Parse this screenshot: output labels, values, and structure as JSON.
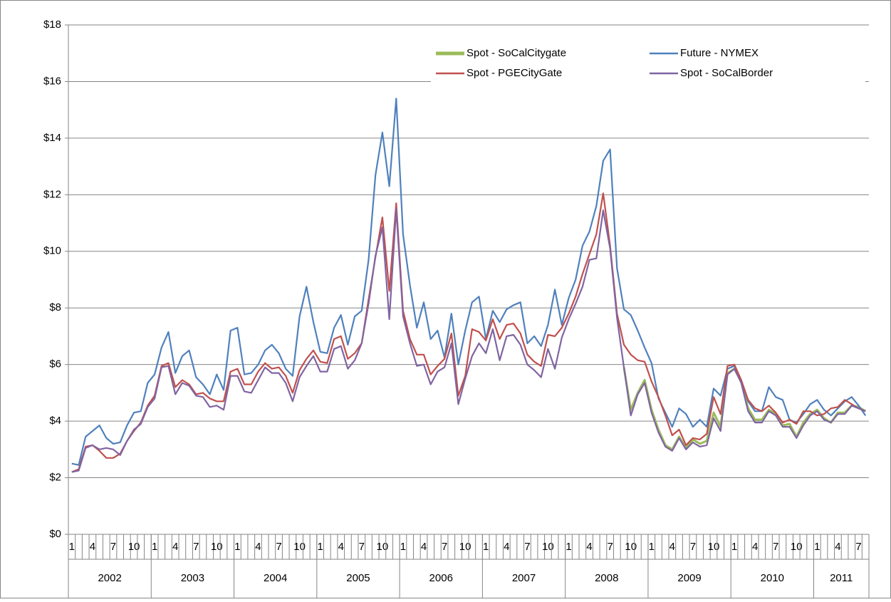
{
  "chart_data": {
    "type": "line",
    "categories": [
      "1",
      null,
      null,
      "4",
      null,
      null,
      "7",
      null,
      null,
      "10",
      null,
      null,
      "1",
      null,
      null,
      "4",
      null,
      null,
      "7",
      null,
      null,
      "10",
      null,
      null,
      "1",
      null,
      null,
      "4",
      null,
      null,
      "7",
      null,
      null,
      "10",
      null,
      null,
      "1",
      null,
      null,
      "4",
      null,
      null,
      "7",
      null,
      null,
      "10",
      null,
      null,
      "1",
      null,
      null,
      "4",
      null,
      null,
      "7",
      null,
      null,
      "10",
      null,
      null,
      "1",
      null,
      null,
      "4",
      null,
      null,
      "7",
      null,
      null,
      "10",
      null,
      null,
      "1",
      null,
      null,
      "4",
      null,
      null,
      "7",
      null,
      null,
      "10",
      null,
      null,
      "1",
      null,
      null,
      "4",
      null,
      null,
      "7",
      null,
      null,
      "10",
      null,
      null,
      "1",
      null,
      null,
      "4",
      null,
      null,
      "7",
      null,
      null,
      "10",
      null,
      null,
      "1",
      null,
      null,
      "4",
      null,
      null,
      "7",
      null
    ],
    "groups": [
      "2002",
      "2003",
      "2004",
      "2005",
      "2006",
      "2007",
      "2008",
      "2009",
      "2010",
      "2011"
    ],
    "ylim": [
      0,
      18
    ],
    "yticks": [
      {
        "value": 0,
        "label": "$0"
      },
      {
        "value": 2,
        "label": "$2"
      },
      {
        "value": 4,
        "label": "$4"
      },
      {
        "value": 6,
        "label": "$6"
      },
      {
        "value": 8,
        "label": "$8"
      },
      {
        "value": 10,
        "label": "$10"
      },
      {
        "value": 12,
        "label": "$12"
      },
      {
        "value": 14,
        "label": "$14"
      },
      {
        "value": 16,
        "label": "$16"
      },
      {
        "value": 18,
        "label": "$18"
      }
    ],
    "grid": true,
    "legend": "top-right",
    "series": [
      {
        "name": "Spot - SoCalCitygate",
        "color": "#9bbb59",
        "values": [
          null,
          null,
          null,
          null,
          null,
          null,
          null,
          null,
          null,
          null,
          null,
          null,
          null,
          null,
          null,
          null,
          null,
          null,
          null,
          null,
          null,
          null,
          null,
          null,
          null,
          null,
          null,
          null,
          null,
          null,
          null,
          null,
          null,
          null,
          null,
          null,
          null,
          null,
          null,
          null,
          null,
          null,
          null,
          null,
          null,
          null,
          null,
          null,
          null,
          null,
          null,
          null,
          null,
          null,
          null,
          null,
          null,
          null,
          null,
          null,
          null,
          null,
          null,
          null,
          null,
          null,
          null,
          null,
          null,
          null,
          null,
          null,
          null,
          null,
          null,
          null,
          null,
          null,
          null,
          null,
          5.9,
          4.4,
          5.0,
          5.45,
          4.4,
          3.7,
          3.15,
          3.0,
          3.45,
          3.05,
          3.35,
          3.2,
          3.3,
          4.3,
          3.8,
          5.7,
          5.85,
          5.4,
          4.45,
          4.05,
          4.05,
          4.4,
          4.25,
          3.85,
          3.9,
          3.45,
          3.95,
          4.25,
          4.4,
          4.1,
          3.95,
          4.3,
          4.3,
          4.55,
          4.5,
          4.35
        ]
      },
      {
        "name": "Future - NYMEX",
        "color": "#4f81bd",
        "values": [
          2.5,
          2.45,
          3.45,
          3.65,
          3.85,
          3.4,
          3.2,
          3.25,
          3.85,
          4.3,
          4.35,
          5.35,
          5.65,
          6.6,
          7.15,
          5.7,
          6.3,
          6.5,
          5.55,
          5.3,
          4.95,
          5.65,
          5.1,
          7.2,
          7.3,
          5.65,
          5.7,
          6.0,
          6.5,
          6.7,
          6.4,
          5.85,
          5.6,
          7.7,
          8.75,
          7.5,
          6.45,
          6.4,
          7.3,
          7.75,
          6.7,
          7.7,
          7.9,
          9.7,
          12.7,
          14.2,
          12.3,
          15.4,
          10.6,
          8.8,
          7.3,
          8.2,
          6.9,
          7.2,
          6.25,
          7.8,
          6.0,
          7.2,
          8.2,
          8.4,
          6.9,
          7.9,
          7.5,
          7.95,
          8.1,
          8.2,
          6.75,
          7.0,
          6.65,
          7.4,
          8.65,
          7.4,
          8.35,
          9.0,
          10.2,
          10.7,
          11.6,
          13.2,
          13.6,
          9.4,
          7.95,
          7.75,
          7.2,
          6.6,
          6.05,
          4.8,
          4.3,
          3.8,
          4.45,
          4.25,
          3.8,
          4.05,
          3.8,
          5.15,
          4.9,
          5.85,
          5.95,
          5.45,
          4.7,
          4.35,
          4.35,
          5.2,
          4.85,
          4.75,
          4.05,
          3.95,
          4.25,
          4.6,
          4.75,
          4.4,
          4.2,
          4.45,
          4.7,
          4.85,
          4.55,
          4.2
        ]
      },
      {
        "name": "Spot - PGECityGate",
        "color": "#c0504d",
        "values": [
          2.2,
          2.3,
          3.1,
          3.15,
          2.95,
          2.7,
          2.7,
          2.85,
          3.3,
          3.65,
          3.95,
          4.55,
          4.9,
          5.95,
          6.05,
          5.2,
          5.45,
          5.3,
          4.95,
          5.0,
          4.8,
          4.7,
          4.7,
          5.75,
          5.85,
          5.3,
          5.3,
          5.75,
          6.05,
          5.85,
          5.9,
          5.6,
          5.0,
          5.8,
          6.2,
          6.5,
          6.1,
          6.05,
          6.9,
          7.0,
          6.2,
          6.4,
          6.75,
          8.3,
          9.8,
          11.2,
          8.6,
          11.7,
          7.9,
          6.9,
          6.35,
          6.35,
          5.65,
          5.95,
          6.2,
          7.1,
          4.9,
          5.6,
          7.25,
          7.15,
          6.85,
          7.6,
          6.9,
          7.4,
          7.45,
          7.1,
          6.35,
          6.1,
          5.95,
          7.05,
          7.0,
          7.3,
          7.8,
          8.4,
          9.2,
          9.9,
          10.6,
          12.05,
          10.2,
          7.8,
          6.7,
          6.35,
          6.15,
          6.1,
          5.4,
          4.85,
          4.2,
          3.5,
          3.7,
          3.15,
          3.4,
          3.35,
          3.55,
          4.85,
          4.25,
          5.95,
          6.0,
          5.45,
          4.75,
          4.45,
          4.35,
          4.55,
          4.3,
          3.95,
          4.05,
          3.9,
          4.35,
          4.35,
          4.2,
          4.25,
          4.45,
          4.5,
          4.75,
          4.6,
          4.45,
          4.35
        ]
      },
      {
        "name": "Spot - SoCalBorder",
        "color": "#8064a2",
        "values": [
          2.2,
          2.25,
          3.05,
          3.15,
          3.0,
          3.05,
          3.0,
          2.8,
          3.3,
          3.7,
          3.9,
          4.5,
          4.8,
          5.9,
          5.95,
          4.95,
          5.35,
          5.25,
          4.9,
          4.85,
          4.5,
          4.55,
          4.4,
          5.6,
          5.6,
          5.05,
          5.0,
          5.45,
          5.9,
          5.7,
          5.7,
          5.35,
          4.7,
          5.55,
          5.95,
          6.3,
          5.75,
          5.75,
          6.55,
          6.65,
          5.85,
          6.15,
          6.75,
          8.15,
          9.85,
          10.85,
          7.6,
          11.5,
          7.7,
          6.75,
          5.95,
          6.0,
          5.3,
          5.75,
          5.9,
          6.75,
          4.6,
          5.5,
          6.3,
          6.75,
          6.4,
          7.25,
          6.15,
          7.0,
          7.05,
          6.7,
          6.0,
          5.8,
          5.55,
          6.55,
          5.85,
          6.95,
          7.6,
          8.15,
          8.75,
          9.7,
          9.75,
          11.45,
          10.1,
          7.65,
          5.9,
          4.2,
          4.95,
          5.35,
          4.3,
          3.6,
          3.1,
          2.95,
          3.4,
          3.0,
          3.25,
          3.1,
          3.15,
          4.1,
          3.65,
          5.65,
          5.85,
          5.35,
          4.35,
          3.95,
          3.95,
          4.35,
          4.2,
          3.8,
          3.8,
          3.4,
          3.85,
          4.2,
          4.35,
          4.05,
          3.95,
          4.25,
          4.25,
          4.55,
          4.45,
          4.35
        ]
      }
    ]
  }
}
